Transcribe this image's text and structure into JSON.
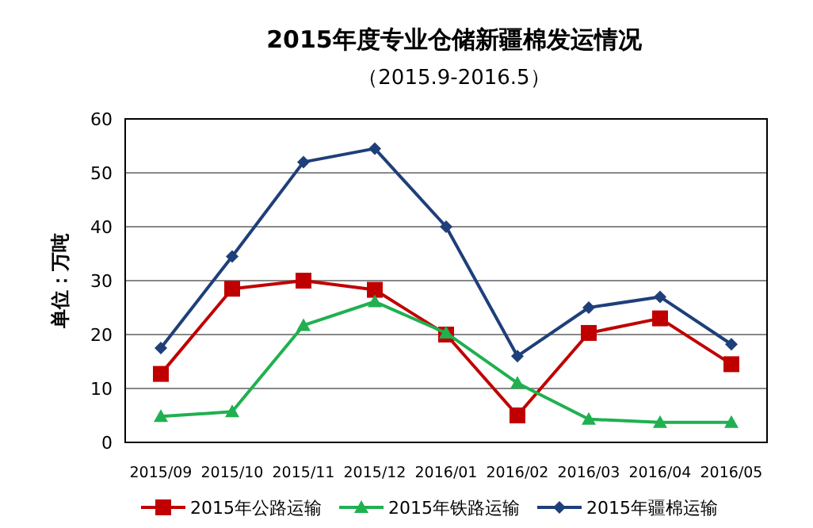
{
  "chart_data": {
    "type": "line",
    "title": "2015年度专业仓储新疆棉发运情况",
    "subtitle": "（2015.9-2016.5）",
    "ylabel": "单位：万吨",
    "categories": [
      "2015/09",
      "2015/10",
      "2015/11",
      "2015/12",
      "2016/01",
      "2016/02",
      "2016/03",
      "2016/04",
      "2016/05"
    ],
    "series": [
      {
        "name": "2015年公路运输",
        "color": "#c00000",
        "marker": "square",
        "values": [
          12.7,
          28.5,
          30,
          28.3,
          20,
          5,
          20.3,
          23,
          14.5
        ]
      },
      {
        "name": "2015年铁路运输",
        "color": "#20b050",
        "marker": "triangle",
        "values": [
          4.8,
          5.7,
          21.7,
          26.1,
          20.3,
          11,
          4.3,
          3.7,
          3.7
        ]
      },
      {
        "name": "2015年疆棉运输",
        "color": "#1f3f7a",
        "marker": "diamond",
        "values": [
          17.5,
          34.5,
          52,
          54.5,
          40,
          16,
          25,
          27,
          18.2
        ]
      }
    ],
    "ylim": [
      0,
      60
    ],
    "yticks": [
      0,
      10,
      20,
      30,
      40,
      50,
      60
    ],
    "grid": "y",
    "legend": "bottom"
  }
}
